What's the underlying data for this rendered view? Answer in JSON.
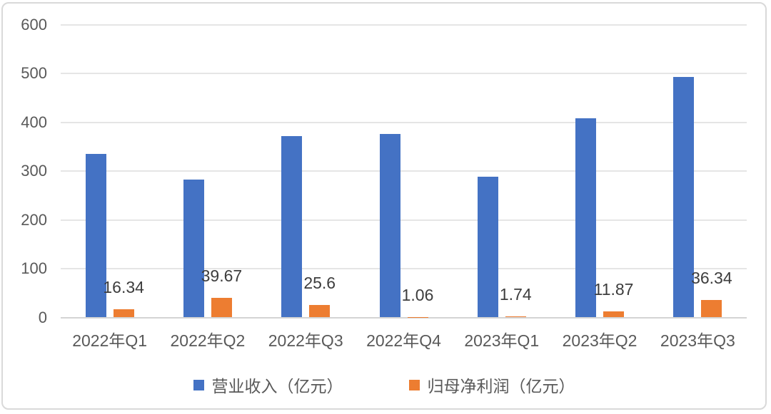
{
  "chart_data": {
    "type": "bar",
    "title": "",
    "xlabel": "",
    "ylabel": "",
    "categories": [
      "2022年Q1",
      "2022年Q2",
      "2022年Q3",
      "2022年Q4",
      "2023年Q1",
      "2023年Q2",
      "2023年Q3"
    ],
    "series": [
      {
        "name": "营业收入（亿元）",
        "color": "#4472C4",
        "values": [
          335,
          283,
          372,
          376,
          289,
          408,
          494
        ],
        "data_labels_shown": false
      },
      {
        "name": "归母净利润（亿元）",
        "color": "#ED7D31",
        "values": [
          16.34,
          39.67,
          25.6,
          1.06,
          1.74,
          11.87,
          36.34
        ],
        "labels": [
          "16.34",
          "39.67",
          "25.6",
          "1.06",
          "1.74",
          "11.87",
          "36.34"
        ],
        "data_labels_shown": true
      }
    ],
    "ylim": [
      0,
      600
    ],
    "yticks": [
      0,
      100,
      200,
      300,
      400,
      500,
      600
    ],
    "grid": true,
    "legend_position": "bottom"
  },
  "colors": {
    "revenue_bar": "#4472C4",
    "profit_bar": "#ED7D31",
    "axis_text": "#595959",
    "data_label_text": "#3d3d3d",
    "gridline": "#e5e5e5",
    "card_border": "#d9d9d9"
  }
}
